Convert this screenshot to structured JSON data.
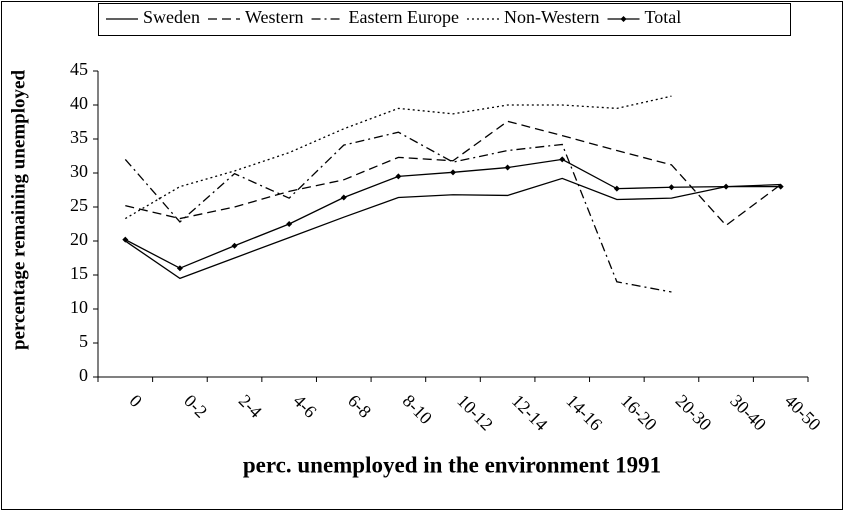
{
  "chart_data": {
    "type": "line",
    "x_label": "perc. unemployed in the environment 1991",
    "y_label": "percentage remaining unemployed",
    "categories": [
      "0",
      "0-2",
      "2-4",
      "4-6",
      "6-8",
      "8-10",
      "10-12",
      "12-14",
      "14-16",
      "16-20",
      "20-30",
      "30-40",
      "40-50"
    ],
    "series": [
      {
        "name": "Sweden",
        "color": "#000000",
        "dash": "solid",
        "marker": "none",
        "values": [
          20.0,
          14.5,
          17.5,
          20.5,
          23.5,
          26.4,
          26.8,
          26.7,
          29.2,
          26.1,
          26.3,
          28.0,
          28.3
        ]
      },
      {
        "name": "Western",
        "color": "#000000",
        "dash": "dashed",
        "marker": "none",
        "values": [
          25.2,
          23.3,
          25.0,
          27.3,
          29.0,
          32.3,
          31.8,
          37.6,
          35.5,
          33.3,
          31.2,
          22.3,
          28.3
        ]
      },
      {
        "name": "Eastern Europe",
        "color": "#000000",
        "dash": "dashdot",
        "marker": "none",
        "values": [
          32.0,
          22.8,
          29.9,
          26.3,
          34.1,
          36.0,
          31.6,
          33.3,
          34.2,
          14.0,
          12.5,
          null,
          null
        ]
      },
      {
        "name": "Non-Western",
        "color": "#000000",
        "dash": "dotted",
        "marker": "none",
        "values": [
          23.3,
          28.0,
          30.3,
          33.0,
          36.5,
          39.5,
          38.7,
          40.0,
          40.0,
          39.5,
          41.3,
          null,
          null
        ]
      },
      {
        "name": "Total",
        "color": "#000000",
        "dash": "solid",
        "marker": "diamond",
        "values": [
          20.2,
          16.0,
          19.3,
          22.5,
          26.4,
          29.5,
          30.1,
          30.8,
          32.0,
          27.7,
          27.9,
          28.0,
          28.0
        ]
      }
    ],
    "ylim": [
      0,
      45
    ],
    "yticks": [
      0,
      5,
      10,
      15,
      20,
      25,
      30,
      35,
      40,
      45
    ],
    "legend": "top",
    "grid": false
  }
}
